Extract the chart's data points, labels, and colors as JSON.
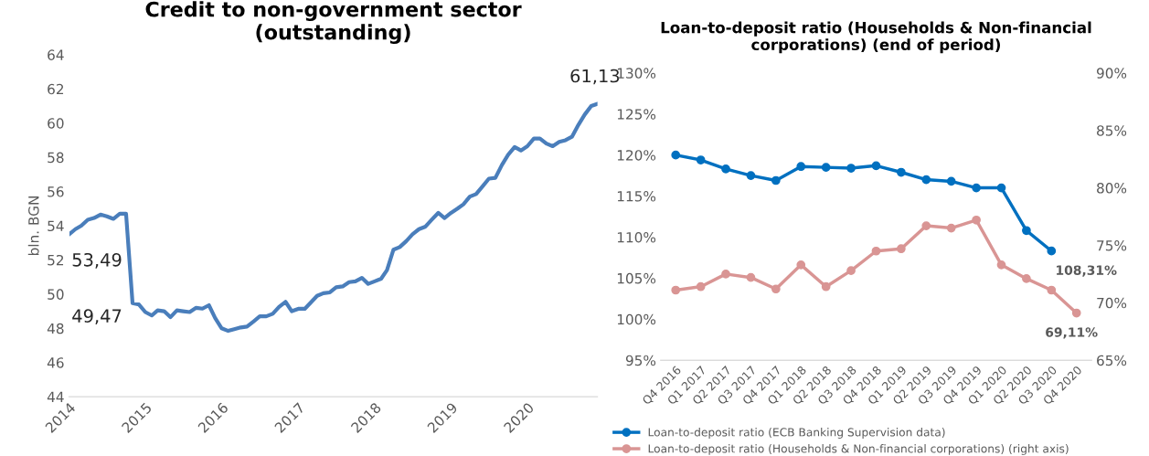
{
  "chart_data": [
    {
      "type": "line",
      "title": "Credit to non-government sector\n(outstanding)",
      "ylabel": "bln. BGN",
      "x": [
        "2014-01",
        "2014-02",
        "2014-03",
        "2014-04",
        "2014-05",
        "2014-06",
        "2014-07",
        "2014-08",
        "2014-09",
        "2014-10",
        "2014-11",
        "2014-12",
        "2015-01",
        "2015-02",
        "2015-03",
        "2015-04",
        "2015-05",
        "2015-06",
        "2015-07",
        "2015-08",
        "2015-09",
        "2015-10",
        "2015-11",
        "2015-12",
        "2016-01",
        "2016-02",
        "2016-03",
        "2016-04",
        "2016-05",
        "2016-06",
        "2016-07",
        "2016-08",
        "2016-09",
        "2016-10",
        "2016-11",
        "2016-12",
        "2017-01",
        "2017-02",
        "2017-03",
        "2017-04",
        "2017-05",
        "2017-06",
        "2017-07",
        "2017-08",
        "2017-09",
        "2017-10",
        "2017-11",
        "2017-12",
        "2018-01",
        "2018-02",
        "2018-03",
        "2018-04",
        "2018-05",
        "2018-06",
        "2018-07",
        "2018-08",
        "2018-09",
        "2018-10",
        "2018-11",
        "2018-12",
        "2019-01",
        "2019-02",
        "2019-03",
        "2019-04",
        "2019-05",
        "2019-06",
        "2019-07",
        "2019-08",
        "2019-09",
        "2019-10",
        "2019-11",
        "2019-12",
        "2020-01",
        "2020-02",
        "2020-03",
        "2020-04",
        "2020-05",
        "2020-06",
        "2020-07",
        "2020-08",
        "2020-09",
        "2020-10",
        "2020-11",
        "2020-12"
      ],
      "series": [
        {
          "color": "#4a7ebb",
          "values": [
            53.49,
            53.8,
            54.0,
            54.35,
            54.45,
            54.65,
            54.55,
            54.4,
            54.7,
            54.7,
            49.47,
            49.4,
            48.95,
            48.75,
            49.05,
            49.0,
            48.65,
            49.05,
            49.0,
            48.95,
            49.2,
            49.15,
            49.35,
            48.6,
            48.0,
            47.85,
            47.95,
            48.05,
            48.1,
            48.4,
            48.7,
            48.7,
            48.85,
            49.25,
            49.55,
            49.0,
            49.14,
            49.14,
            49.5,
            49.9,
            50.05,
            50.1,
            50.4,
            50.45,
            50.7,
            50.75,
            50.95,
            50.6,
            50.75,
            50.9,
            51.4,
            52.6,
            52.75,
            53.1,
            53.5,
            53.8,
            53.95,
            54.35,
            54.75,
            54.45,
            54.75,
            55.0,
            55.25,
            55.7,
            55.85,
            56.3,
            56.75,
            56.8,
            57.55,
            58.15,
            58.6,
            58.4,
            58.65,
            59.1,
            59.1,
            58.8,
            58.65,
            58.9,
            59.0,
            59.2,
            59.9,
            60.5,
            61.0,
            61.13
          ]
        }
      ],
      "ylim": [
        44,
        64
      ],
      "yticks": [
        44,
        46,
        48,
        50,
        52,
        54,
        56,
        58,
        60,
        62,
        64
      ],
      "xlim": [
        "2014-01",
        "2020-12"
      ],
      "xticks": [
        "2014",
        "2015",
        "2016",
        "2017",
        "2018",
        "2019",
        "2020"
      ],
      "grid": false,
      "legend": false,
      "annotations": [
        {
          "text": "53,49",
          "x": "2014-01",
          "y": 53.49
        },
        {
          "text": "49,47",
          "x": "2014-11",
          "y": 49.47
        },
        {
          "text": "61,13",
          "x": "2020-12",
          "y": 61.13
        }
      ]
    },
    {
      "type": "line",
      "title": "Loan-to-deposit ratio (Households & Non-financial\ncorporations) (end of period)",
      "categories": [
        "Q4 2016",
        "Q1 2017",
        "Q2 2017",
        "Q3 2017",
        "Q4 2017",
        "Q1 2018",
        "Q2 2018",
        "Q3 2018",
        "Q4 2018",
        "Q1 2019",
        "Q2 2019",
        "Q3 2019",
        "Q4 2019",
        "Q1 2020",
        "Q2 2020",
        "Q3 2020",
        "Q4 2020"
      ],
      "series": [
        {
          "name": "Loan-to-deposit ratio (ECB Banking Supervision data)",
          "color": "#0070c0",
          "values": [
            120.0,
            119.4,
            118.3,
            117.5,
            116.9,
            118.6,
            118.5,
            118.4,
            118.7,
            117.9,
            117.0,
            116.8,
            116.0,
            116.0,
            110.8,
            108.31,
            null
          ],
          "value_labels": [
            null,
            null,
            null,
            null,
            null,
            null,
            null,
            null,
            null,
            null,
            null,
            null,
            null,
            null,
            null,
            "108,31%",
            null
          ]
        },
        {
          "name": "Loan-to-deposit ratio (Households & Non-financial corporations) (right axis)",
          "color": "#d99594",
          "axis": "y2",
          "values": [
            71.1,
            71.4,
            72.5,
            72.2,
            71.2,
            73.3,
            71.4,
            72.8,
            74.5,
            74.7,
            76.7,
            76.5,
            77.2,
            73.3,
            72.1,
            71.1,
            69.11
          ],
          "value_labels": [
            null,
            null,
            null,
            null,
            null,
            null,
            null,
            null,
            null,
            null,
            null,
            null,
            null,
            null,
            null,
            null,
            "69,11%"
          ]
        }
      ],
      "marker": "circle",
      "line_style": "solid",
      "ylim": [
        95,
        130
      ],
      "yticks": [
        {
          "value": 95,
          "label": "95%"
        },
        {
          "value": 100,
          "label": "100%"
        },
        {
          "value": 105,
          "label": "105%"
        },
        {
          "value": 110,
          "label": "110%"
        },
        {
          "value": 115,
          "label": "115%"
        },
        {
          "value": 120,
          "label": "120%"
        },
        {
          "value": 125,
          "label": "125%"
        },
        {
          "value": 130,
          "label": "130%"
        }
      ],
      "y2lim": [
        65,
        90
      ],
      "y2ticks": [
        {
          "value": 65,
          "label": "65%"
        },
        {
          "value": 70,
          "label": "70%"
        },
        {
          "value": 75,
          "label": "75%"
        },
        {
          "value": 80,
          "label": "80%"
        },
        {
          "value": 85,
          "label": "85%"
        },
        {
          "value": 90,
          "label": "90%"
        }
      ],
      "grid": false,
      "legend": "bottom"
    }
  ]
}
